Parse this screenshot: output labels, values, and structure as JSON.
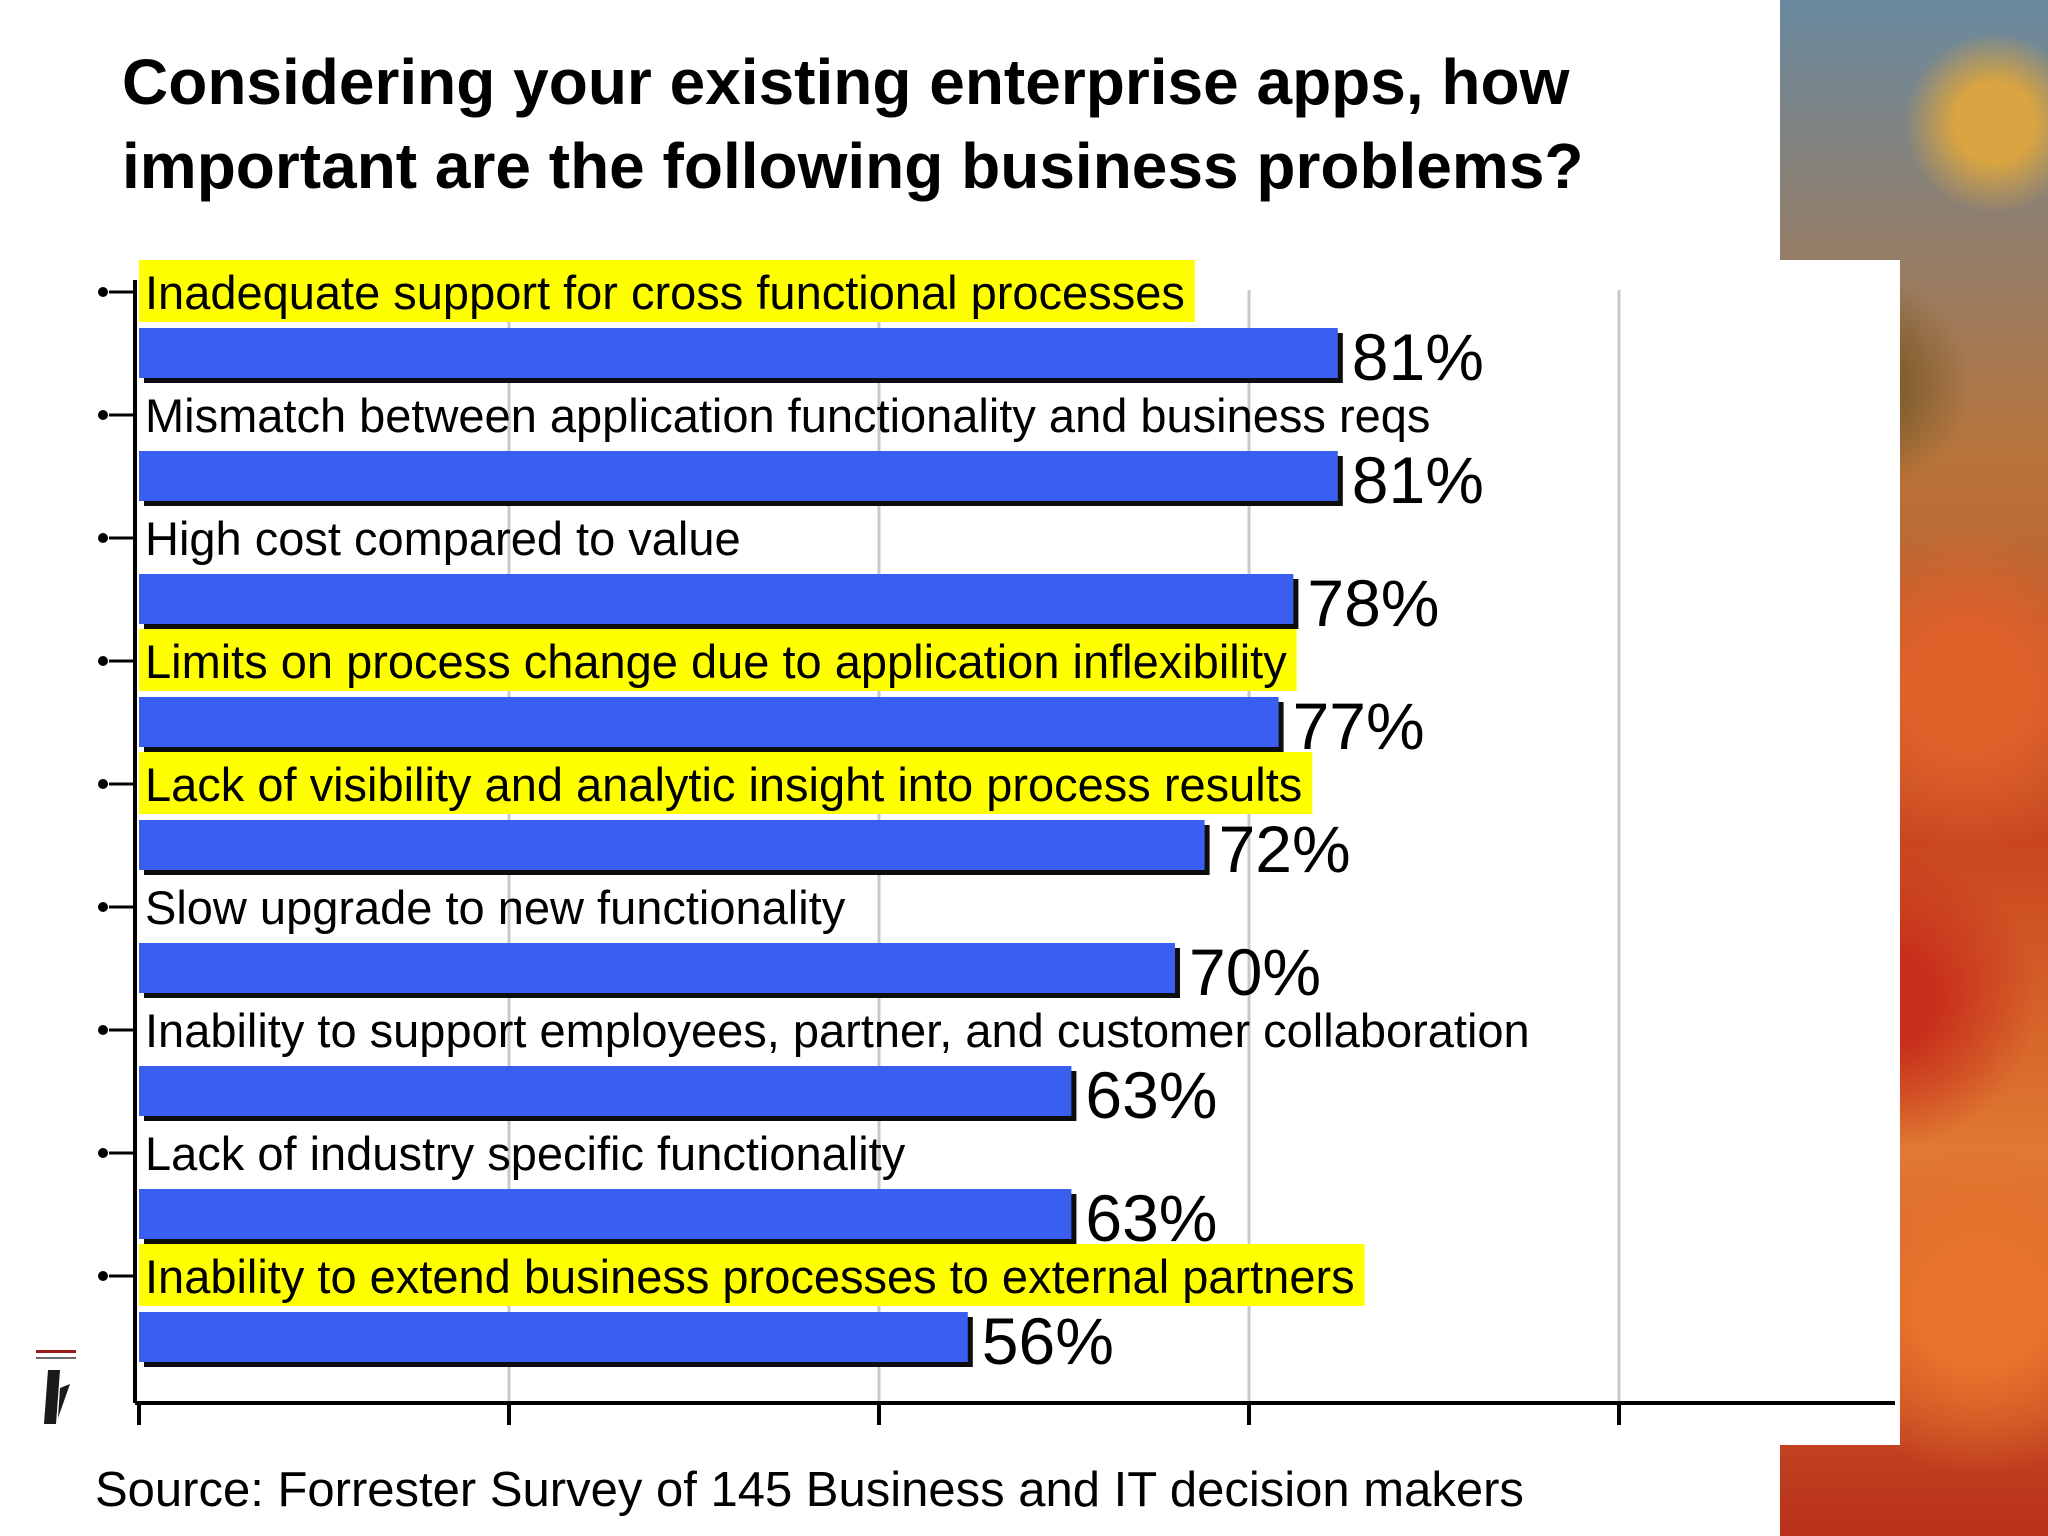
{
  "title": "Considering your existing enterprise apps, how important are the following business problems?",
  "source": "Source: Forrester Survey of 145 Business and IT decision makers",
  "colors": {
    "bar": "#3a5ef0",
    "bar_shadow": "#0d0d0d",
    "highlight": "#ffff00",
    "grid": "#c8c8c8",
    "axis": "#000000"
  },
  "chart_data": {
    "type": "bar",
    "orientation": "horizontal",
    "categories": [
      "Inadequate support for cross functional processes",
      "Mismatch between application functionality and business reqs",
      "High cost compared to value",
      "Limits on process change due to application inflexibility",
      "Lack of visibility and analytic insight into process results",
      "Slow upgrade to new functionality",
      "Inability to support employees, partner, and customer collaboration",
      "Lack of industry specific functionality",
      "Inability to extend business processes to external partners"
    ],
    "values": [
      81,
      81,
      78,
      77,
      72,
      70,
      63,
      63,
      56
    ],
    "value_labels": [
      "81%",
      "81%",
      "78%",
      "77%",
      "72%",
      "70%",
      "63%",
      "63%",
      "56%"
    ],
    "highlighted": [
      true,
      false,
      false,
      true,
      true,
      false,
      false,
      false,
      true
    ],
    "xlim": [
      0,
      100
    ],
    "grid": true,
    "xlabel": "",
    "ylabel": ""
  }
}
